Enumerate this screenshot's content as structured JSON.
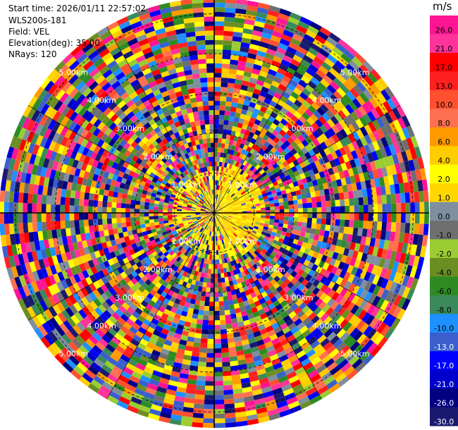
{
  "info": {
    "start_time": "Start time: 2026/01/11 22:57:02",
    "site": "WLS200s-181",
    "field": "Field: VEL",
    "elevation": "Elevation(deg): 35.00",
    "nrays": "NRays: 120"
  },
  "chart_data": {
    "type": "heatmap",
    "projection": "polar-ppi",
    "n_rays": 120,
    "range_rings_km": [
      1,
      2,
      3,
      4,
      5
    ],
    "ring_labels": [
      "1.00km",
      "2.00km",
      "3.00km",
      "4.00km",
      "5.00km"
    ],
    "max_range_km": 5.4,
    "colorbar": {
      "unit": "m/s",
      "ticks": [
        "26.0",
        "21.0",
        "17.0",
        "13.0",
        "10.0",
        "8.0",
        "6.0",
        "4.0",
        "2.0",
        "1.0",
        "0.0",
        "-1.0",
        "-2.0",
        "-4.0",
        "-6.0",
        "-8.0",
        "-10.0",
        "-13.0",
        "-17.0",
        "-21.0",
        "-26.0",
        "-30.0"
      ],
      "colors": [
        "#ff1493",
        "#ff3399",
        "#ff0000",
        "#ff2020",
        "#ff5030",
        "#ff7050",
        "#ff9a00",
        "#ffcc00",
        "#ffff00",
        "#ffd700",
        "#7f8f9f",
        "#6f6f6f",
        "#9acd32",
        "#6b8e23",
        "#2e8b22",
        "#3a8a5a",
        "#1e90ff",
        "#3a5fcd",
        "#0000ff",
        "#0000cd",
        "#000080",
        "#191970"
      ]
    }
  }
}
